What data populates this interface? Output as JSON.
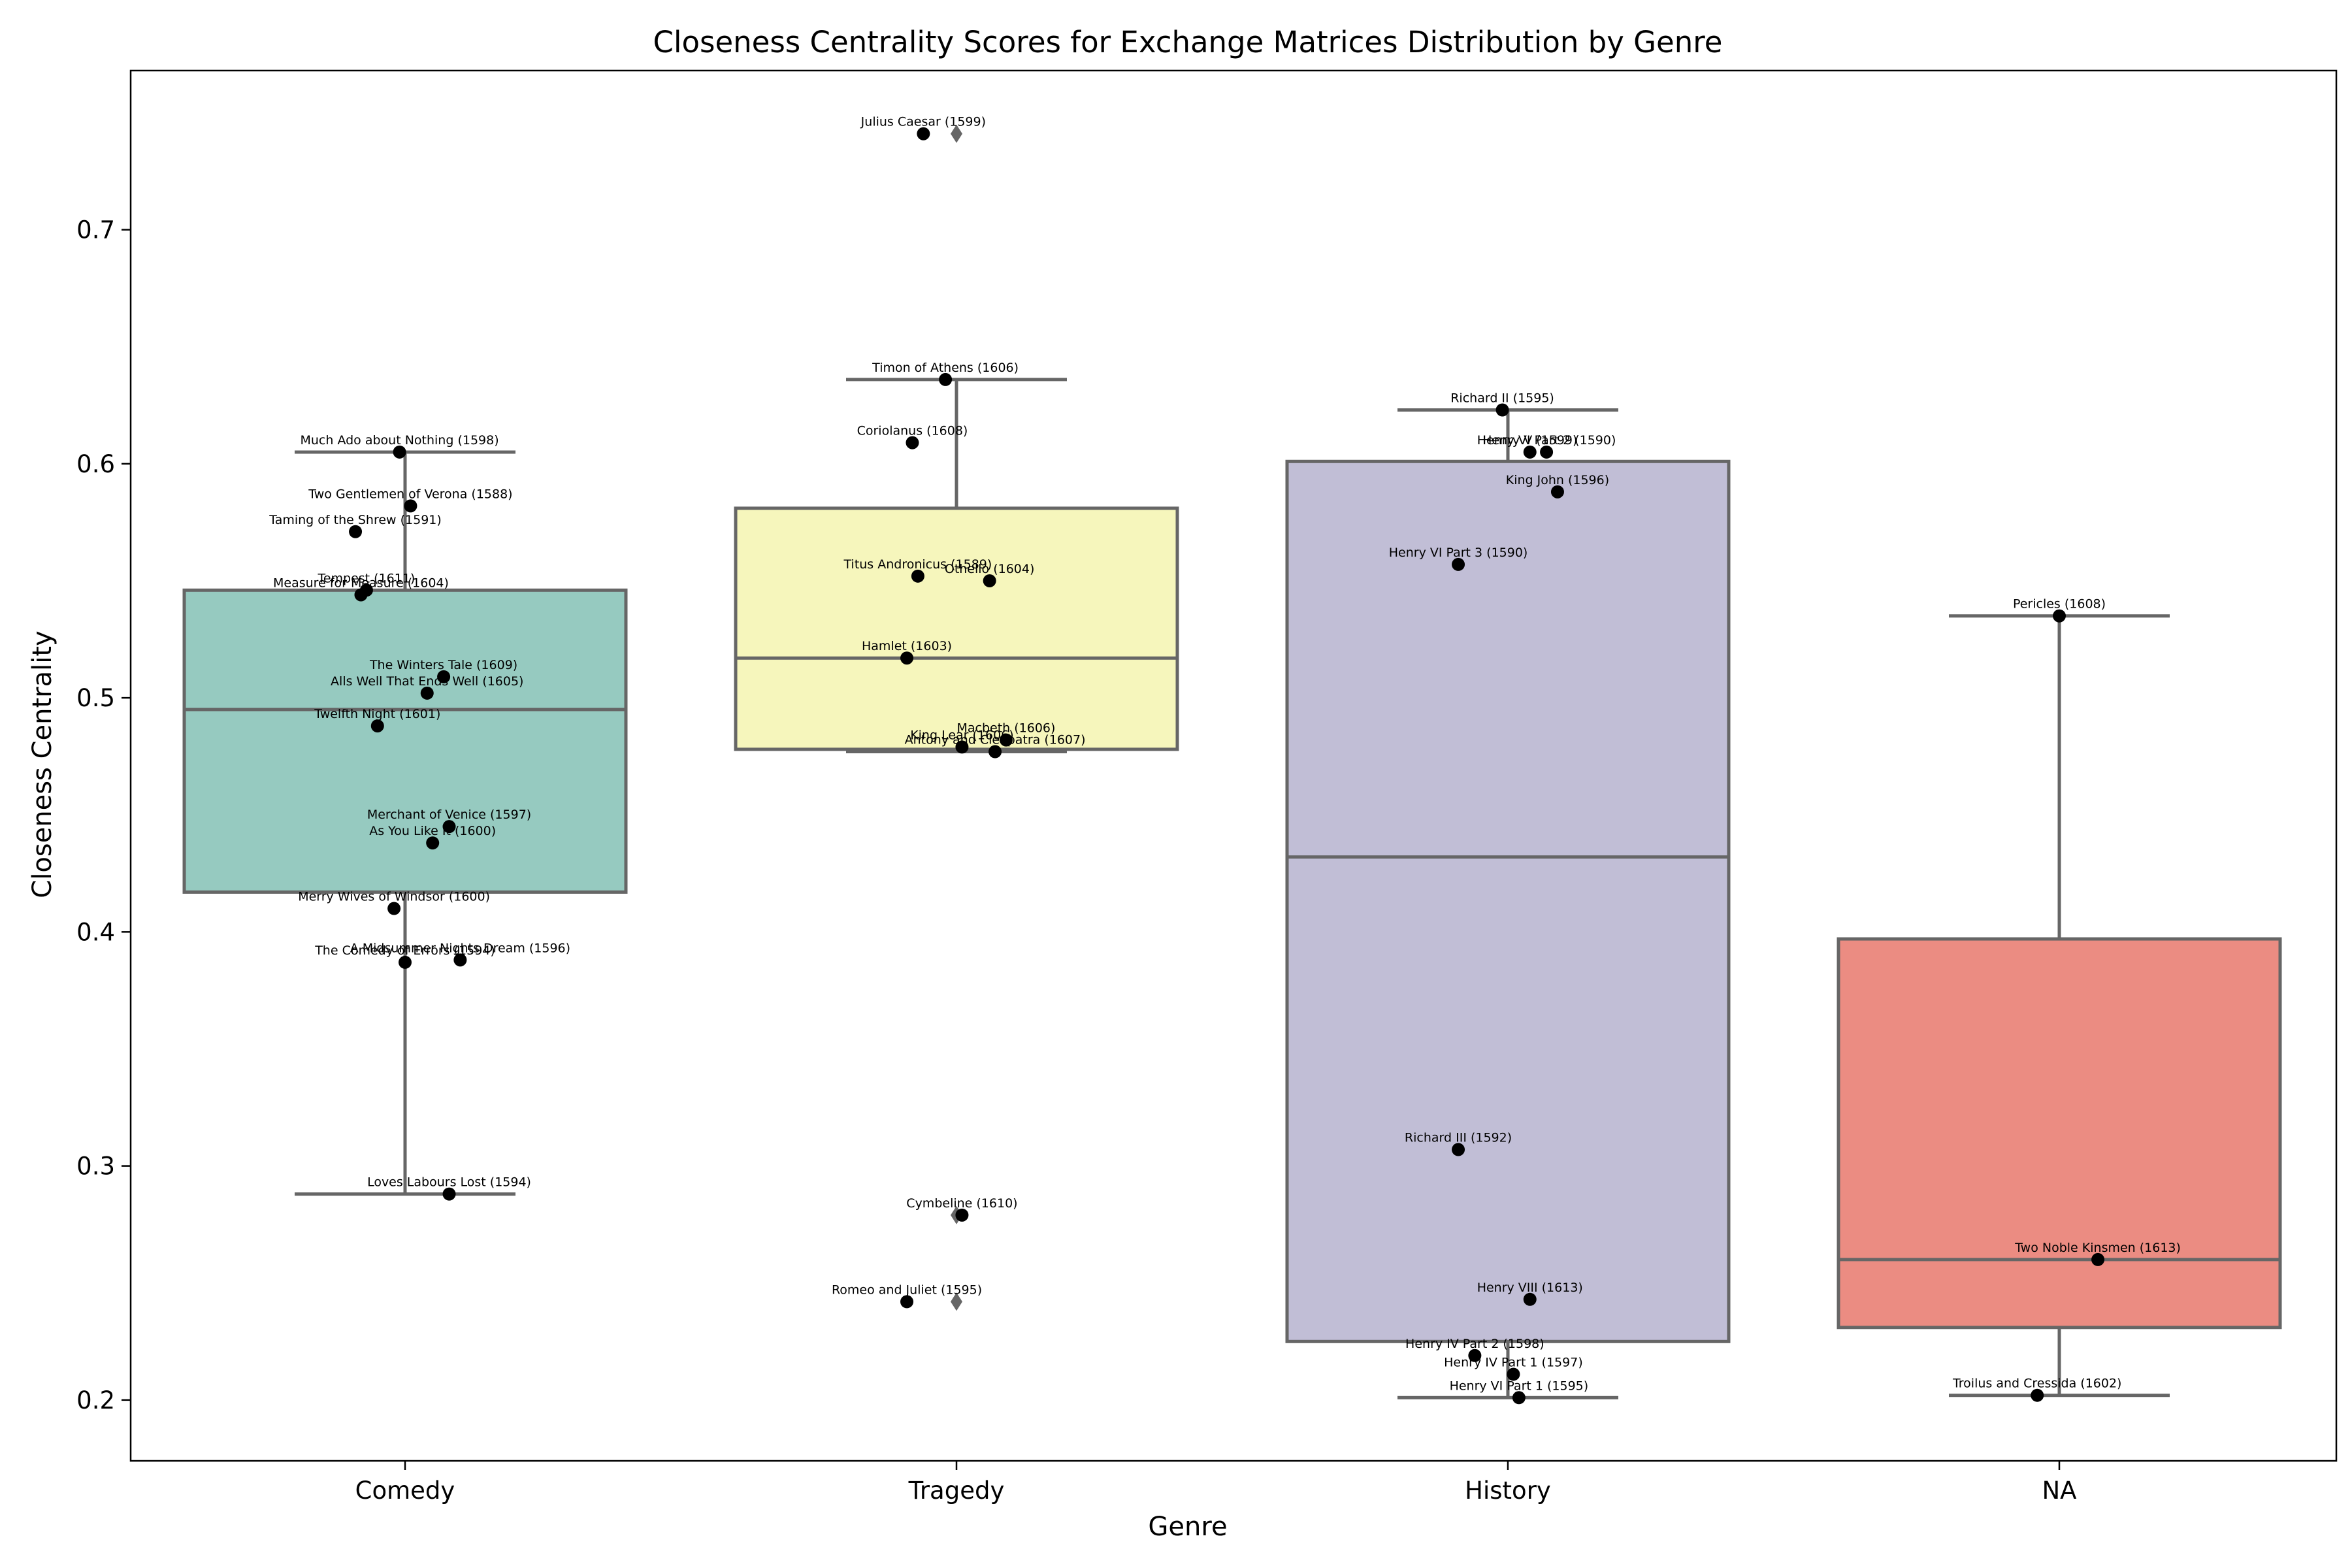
{
  "chart_data": {
    "type": "box",
    "title": "Closeness Centrality Scores for Exchange Matrices Distribution by Genre",
    "xlabel": "Genre",
    "ylabel": "Closeness Centrality",
    "ylim": [
      0.174,
      0.768
    ],
    "yticks": [
      "0.2",
      "0.3",
      "0.4",
      "0.5",
      "0.6",
      "0.7"
    ],
    "grid": false,
    "categories": [
      "Comedy",
      "Tragedy",
      "History",
      "NA"
    ],
    "colors": [
      "#96cac0",
      "#f6f6bc",
      "#c1bed6",
      "#eb8c82"
    ],
    "boxes": [
      {
        "category": "Comedy",
        "whisker_low": 0.288,
        "q1": 0.417,
        "median": 0.495,
        "q3": 0.546,
        "whisker_high": 0.605,
        "outliers": []
      },
      {
        "category": "Tragedy",
        "whisker_low": 0.477,
        "q1": 0.478,
        "median": 0.517,
        "q3": 0.581,
        "whisker_high": 0.636,
        "outliers": [
          0.741,
          0.279,
          0.242
        ]
      },
      {
        "category": "History",
        "whisker_low": 0.201,
        "q1": 0.225,
        "median": 0.432,
        "q3": 0.601,
        "whisker_high": 0.623,
        "outliers": []
      },
      {
        "category": "NA",
        "whisker_low": 0.202,
        "q1": 0.231,
        "median": 0.26,
        "q3": 0.397,
        "whisker_high": 0.535,
        "outliers": []
      }
    ],
    "points": [
      {
        "genre": "Comedy",
        "label": "Much Ado about Nothing (1598)",
        "value": 0.605,
        "jitter": -0.01
      },
      {
        "genre": "Comedy",
        "label": "Two Gentlemen of Verona (1588)",
        "value": 0.582,
        "jitter": 0.01
      },
      {
        "genre": "Comedy",
        "label": "Taming of the Shrew (1591)",
        "value": 0.571,
        "jitter": -0.09
      },
      {
        "genre": "Comedy",
        "label": "Tempest (1611)",
        "value": 0.546,
        "jitter": -0.07
      },
      {
        "genre": "Comedy",
        "label": "Measure for Measure (1604)",
        "value": 0.544,
        "jitter": -0.08
      },
      {
        "genre": "Comedy",
        "label": "The Winters Tale (1609)",
        "value": 0.509,
        "jitter": 0.07
      },
      {
        "genre": "Comedy",
        "label": "Alls Well That Ends Well (1605)",
        "value": 0.502,
        "jitter": 0.04
      },
      {
        "genre": "Comedy",
        "label": "Twelfth Night (1601)",
        "value": 0.488,
        "jitter": -0.05
      },
      {
        "genre": "Comedy",
        "label": "Merchant of Venice (1597)",
        "value": 0.445,
        "jitter": 0.08
      },
      {
        "genre": "Comedy",
        "label": "As You Like It (1600)",
        "value": 0.438,
        "jitter": 0.05
      },
      {
        "genre": "Comedy",
        "label": "Merry Wives of Windsor (1600)",
        "value": 0.41,
        "jitter": -0.02
      },
      {
        "genre": "Comedy",
        "label": "A Midsummer Nights Dream (1596)",
        "value": 0.388,
        "jitter": 0.1
      },
      {
        "genre": "Comedy",
        "label": "The Comedy of Errors (1594)",
        "value": 0.387,
        "jitter": 0.0
      },
      {
        "genre": "Comedy",
        "label": "Loves Labours Lost (1594)",
        "value": 0.288,
        "jitter": 0.08
      },
      {
        "genre": "Tragedy",
        "label": "Julius Caesar (1599)",
        "value": 0.741,
        "jitter": -0.06
      },
      {
        "genre": "Tragedy",
        "label": "Timon of Athens (1606)",
        "value": 0.636,
        "jitter": -0.02
      },
      {
        "genre": "Tragedy",
        "label": "Coriolanus (1608)",
        "value": 0.609,
        "jitter": -0.08
      },
      {
        "genre": "Tragedy",
        "label": "Titus Andronicus (1589)",
        "value": 0.552,
        "jitter": -0.07
      },
      {
        "genre": "Tragedy",
        "label": "Othello (1604)",
        "value": 0.55,
        "jitter": 0.06
      },
      {
        "genre": "Tragedy",
        "label": "Hamlet (1603)",
        "value": 0.517,
        "jitter": -0.09
      },
      {
        "genre": "Tragedy",
        "label": "Macbeth (1606)",
        "value": 0.482,
        "jitter": 0.09
      },
      {
        "genre": "Tragedy",
        "label": "King Lear (1606)",
        "value": 0.479,
        "jitter": 0.01
      },
      {
        "genre": "Tragedy",
        "label": "Antony and Cleopatra (1607)",
        "value": 0.477,
        "jitter": 0.07
      },
      {
        "genre": "Tragedy",
        "label": "Cymbeline (1610)",
        "value": 0.279,
        "jitter": 0.01
      },
      {
        "genre": "Tragedy",
        "label": "Romeo and Juliet (1595)",
        "value": 0.242,
        "jitter": -0.09
      },
      {
        "genre": "History",
        "label": "Richard II (1595)",
        "value": 0.623,
        "jitter": -0.01
      },
      {
        "genre": "History",
        "label": "Henry VI Part 2 (1590)",
        "value": 0.605,
        "jitter": 0.07
      },
      {
        "genre": "History",
        "label": "Henry V (1599)",
        "value": 0.605,
        "jitter": 0.04
      },
      {
        "genre": "History",
        "label": "King John (1596)",
        "value": 0.588,
        "jitter": 0.09
      },
      {
        "genre": "History",
        "label": "Henry VI Part 3 (1590)",
        "value": 0.557,
        "jitter": -0.09
      },
      {
        "genre": "History",
        "label": "Richard III (1592)",
        "value": 0.307,
        "jitter": -0.09
      },
      {
        "genre": "History",
        "label": "Henry VIII (1613)",
        "value": 0.243,
        "jitter": 0.04
      },
      {
        "genre": "History",
        "label": "Henry IV Part 2 (1598)",
        "value": 0.219,
        "jitter": -0.06
      },
      {
        "genre": "History",
        "label": "Henry IV Part 1 (1597)",
        "value": 0.211,
        "jitter": 0.01
      },
      {
        "genre": "History",
        "label": "Henry VI Part 1 (1595)",
        "value": 0.201,
        "jitter": 0.02
      },
      {
        "genre": "NA",
        "label": "Pericles (1608)",
        "value": 0.535,
        "jitter": 0.0
      },
      {
        "genre": "NA",
        "label": "Two Noble Kinsmen (1613)",
        "value": 0.26,
        "jitter": 0.07
      },
      {
        "genre": "NA",
        "label": "Troilus and Cressida (1602)",
        "value": 0.202,
        "jitter": -0.04
      }
    ]
  }
}
